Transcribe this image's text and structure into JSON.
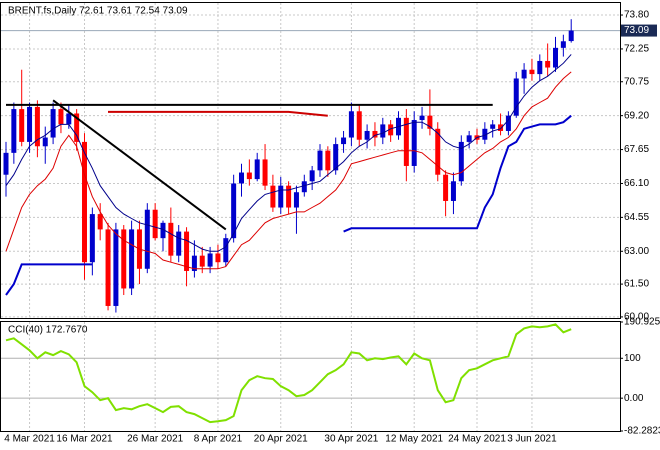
{
  "chart_data": [
    {
      "type": "candlestick",
      "title": "BRENT.fs,Daily  72.61 73.61 72.54 73.09",
      "categories": [
        null,
        null,
        null,
        "4 Mar 2021",
        null,
        null,
        null,
        null,
        null,
        null,
        "16 Mar 2021",
        null,
        null,
        null,
        null,
        null,
        null,
        null,
        null,
        "26 Mar 2021",
        null,
        null,
        null,
        null,
        null,
        null,
        null,
        "8 Apr 2021",
        null,
        null,
        null,
        null,
        null,
        null,
        null,
        "20 Apr 2021",
        null,
        null,
        null,
        null,
        null,
        null,
        null,
        null,
        "30 Apr 2021",
        null,
        null,
        null,
        null,
        null,
        null,
        null,
        "12 May 2021",
        null,
        null,
        null,
        null,
        null,
        null,
        null,
        "24 May 2021",
        null,
        null,
        null,
        null,
        null,
        null,
        "3 Jun 2021",
        null,
        null,
        null,
        null,
        null
      ],
      "open": [
        66.5,
        67.5,
        69.5,
        68.0,
        69.6,
        67.8,
        68.2,
        69.5,
        68.8,
        69.3,
        68.0,
        62.5,
        64.7,
        64.0,
        60.5,
        64.0,
        61.3,
        64.0,
        62.2,
        64.9,
        63.6,
        64.3,
        62.8,
        63.9,
        62.1,
        62.8,
        62.3,
        62.9,
        62.5,
        63.6,
        66.1,
        66.6,
        66.3,
        67.2,
        66.0,
        65.0,
        66.0,
        65.0,
        65.7,
        66.2,
        66.7,
        67.6,
        66.7,
        67.9,
        68.2,
        69.4,
        68.1,
        68.5,
        68.2,
        68.8,
        68.3,
        69.1,
        66.9,
        69.0,
        69.2,
        68.6,
        66.5,
        65.3,
        66.2,
        68.0,
        68.3,
        68.1,
        68.6,
        68.8,
        68.5,
        69.2,
        70.9,
        71.3,
        71.1,
        71.7,
        71.4,
        72.3,
        72.61
      ],
      "high": [
        68.0,
        69.8,
        71.3,
        69.8,
        69.9,
        68.7,
        69.8,
        69.8,
        69.7,
        69.5,
        68.4,
        65.0,
        65.2,
        64.3,
        64.3,
        64.2,
        64.4,
        64.4,
        65.2,
        65.2,
        64.4,
        65.0,
        64.2,
        64.1,
        63.5,
        63.2,
        63.2,
        63.3,
        63.8,
        66.5,
        67.0,
        67.2,
        67.5,
        67.9,
        66.5,
        66.4,
        66.2,
        66.0,
        66.5,
        66.9,
        67.9,
        67.8,
        68.2,
        68.5,
        69.8,
        69.7,
        68.8,
        68.9,
        69.1,
        69.0,
        69.4,
        69.5,
        69.4,
        69.6,
        70.4,
        68.9,
        66.7,
        66.6,
        68.3,
        68.5,
        68.6,
        68.9,
        69.0,
        69.3,
        69.4,
        71.2,
        71.6,
        71.8,
        72.0,
        72.5,
        72.8,
        72.9,
        73.61
      ],
      "low": [
        65.5,
        67.0,
        67.8,
        67.5,
        67.3,
        67.0,
        67.9,
        68.4,
        68.6,
        67.6,
        61.7,
        61.9,
        63.5,
        60.3,
        60.2,
        61.0,
        61.0,
        61.5,
        62.0,
        63.5,
        63.0,
        62.5,
        62.5,
        61.4,
        61.8,
        62.0,
        62.0,
        62.2,
        62.3,
        63.4,
        65.5,
        66.0,
        66.2,
        65.8,
        64.8,
        64.7,
        64.7,
        63.8,
        65.5,
        65.8,
        66.4,
        66.4,
        66.5,
        67.5,
        67.8,
        67.8,
        67.7,
        67.8,
        67.9,
        68.0,
        68.1,
        66.2,
        66.6,
        68.6,
        68.3,
        66.2,
        64.6,
        64.7,
        66.0,
        67.7,
        67.9,
        67.9,
        68.2,
        68.3,
        68.3,
        69.1,
        70.2,
        70.8,
        70.8,
        71.0,
        71.2,
        71.9,
        72.54
      ],
      "close": [
        67.5,
        69.5,
        68.0,
        69.6,
        67.8,
        68.2,
        69.5,
        68.8,
        69.3,
        68.0,
        62.5,
        64.7,
        64.0,
        60.5,
        64.0,
        61.3,
        64.0,
        62.2,
        64.9,
        63.6,
        64.3,
        62.8,
        63.9,
        62.1,
        62.8,
        62.3,
        62.9,
        62.5,
        63.6,
        66.1,
        66.6,
        66.3,
        67.2,
        66.0,
        65.0,
        66.0,
        65.0,
        65.7,
        66.2,
        66.7,
        67.6,
        66.7,
        67.9,
        68.2,
        69.4,
        68.1,
        68.5,
        68.2,
        68.8,
        68.3,
        69.1,
        66.9,
        69.0,
        69.2,
        68.6,
        66.5,
        65.3,
        66.2,
        68.0,
        68.3,
        68.1,
        68.6,
        68.8,
        68.5,
        69.2,
        70.9,
        71.3,
        71.1,
        71.7,
        71.4,
        72.3,
        72.6,
        73.09
      ],
      "up_color": "#0000cc",
      "down_color": "#ff0000",
      "overlays": [
        {
          "color": "#00008b",
          "width": 1,
          "values": [
            66.0,
            66.5,
            67.2,
            67.8,
            68.1,
            68.3,
            68.6,
            68.8,
            68.8,
            68.3,
            67.5,
            66.8,
            66.0,
            65.5,
            65.0,
            64.7,
            64.5,
            64.3,
            64.2,
            64.1,
            64.0,
            63.8,
            63.6,
            63.5,
            63.3,
            63.1,
            63.0,
            63.0,
            63.2,
            63.8,
            64.5,
            64.9,
            65.3,
            65.6,
            65.7,
            65.8,
            65.8,
            65.9,
            66.0,
            66.1,
            66.2,
            66.5,
            66.8,
            67.1,
            67.5,
            67.8,
            68.0,
            68.3,
            68.4,
            68.6,
            68.7,
            68.8,
            68.9,
            68.9,
            68.7,
            68.4,
            68.0,
            67.8,
            67.7,
            67.9,
            68.2,
            68.3,
            68.5,
            68.6,
            69.0,
            69.6,
            70.1,
            70.5,
            70.8,
            71.0,
            71.3,
            71.6,
            72.0
          ]
        },
        {
          "color": "#dd0000",
          "width": 1,
          "values": [
            63.0,
            64.0,
            65.0,
            65.6,
            66.0,
            66.3,
            66.8,
            67.8,
            68.3,
            67.8,
            66.5,
            65.5,
            64.8,
            64.2,
            63.8,
            63.5,
            63.3,
            63.1,
            63.0,
            62.9,
            62.6,
            62.5,
            62.4,
            62.3,
            62.2,
            62.2,
            62.2,
            62.2,
            62.3,
            62.8,
            63.3,
            63.5,
            63.9,
            64.3,
            64.5,
            64.6,
            64.7,
            64.8,
            64.8,
            65.0,
            65.2,
            65.5,
            65.8,
            66.3,
            67.0,
            67.1,
            67.2,
            67.3,
            67.4,
            67.5,
            67.6,
            67.6,
            67.6,
            67.5,
            67.2,
            66.9,
            66.6,
            66.5,
            66.6,
            66.9,
            67.2,
            67.5,
            67.7,
            68.0,
            68.2,
            68.6,
            69.2,
            69.6,
            69.8,
            70.0,
            70.5,
            70.9,
            71.2
          ]
        },
        {
          "color": "#0000cc",
          "width": 2,
          "values": [
            61.0,
            61.5,
            62.4,
            62.4,
            62.4,
            62.4,
            62.4,
            62.4,
            62.4,
            62.4,
            62.4,
            62.4,
            null,
            null,
            null,
            null,
            null,
            null,
            null,
            null,
            null,
            null,
            null,
            null,
            null,
            null,
            null,
            null,
            null,
            null,
            null,
            null,
            null,
            null,
            null,
            null,
            null,
            null,
            null,
            null,
            null,
            null,
            null,
            63.9,
            64.05,
            64.05,
            64.05,
            64.05,
            64.05,
            64.05,
            64.05,
            64.05,
            64.05,
            64.05,
            64.05,
            64.05,
            64.05,
            64.05,
            64.05,
            64.05,
            64.05,
            65.0,
            65.6,
            66.8,
            67.8,
            68.0,
            68.6,
            68.7,
            68.8,
            68.8,
            68.8,
            68.9,
            69.2
          ]
        }
      ],
      "lines": [
        {
          "color": "#000000",
          "x": [
            0,
            62
          ],
          "y": [
            69.69,
            69.69
          ]
        },
        {
          "color": "#000000",
          "x": [
            6,
            28
          ],
          "y": [
            69.9,
            64.0
          ]
        },
        {
          "color": "#cc0000",
          "x": [
            13,
            36,
            41
          ],
          "y": [
            69.37,
            69.37,
            69.2
          ]
        }
      ],
      "last_price": {
        "value": 73.09,
        "label": "73.09"
      },
      "ylim": [
        59.95,
        74.35
      ],
      "yticks": [
        {
          "value": 73.8,
          "label": "73.80"
        },
        72.25,
        70.75,
        {
          "value": 69.2,
          "label": "69.20"
        },
        67.65,
        {
          "value": 66.1,
          "label": "66.10"
        },
        64.55,
        {
          "value": 63,
          "label": "63.00"
        },
        {
          "value": 61.5,
          "label": "61.50"
        },
        {
          "value": 60,
          "label": "60.00"
        }
      ],
      "grid": true
    },
    {
      "type": "line",
      "title": "CCI(40) 172.7670",
      "color": "#80e000",
      "values": [
        145,
        150,
        135,
        120,
        100,
        115,
        108,
        118,
        110,
        90,
        30,
        15,
        -5,
        0,
        -30,
        -25,
        -28,
        -20,
        -15,
        -25,
        -35,
        -22,
        -20,
        -35,
        -40,
        -50,
        -60,
        -58,
        -55,
        -45,
        20,
        45,
        55,
        50,
        48,
        30,
        20,
        5,
        8,
        20,
        40,
        60,
        70,
        85,
        115,
        112,
        95,
        100,
        98,
        102,
        105,
        85,
        112,
        100,
        95,
        20,
        -10,
        -5,
        50,
        70,
        75,
        85,
        95,
        100,
        105,
        160,
        175,
        180,
        178,
        180,
        185,
        165,
        172.767
      ],
      "ylim": [
        -82.2823,
        190.9253
      ],
      "yticks": [
        190.9253,
        100,
        {
          "value": 0,
          "label": "0.00"
        },
        -82.2823
      ]
    }
  ]
}
